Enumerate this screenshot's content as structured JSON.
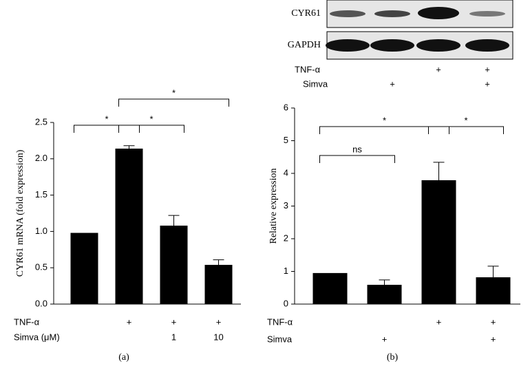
{
  "chart_data": [
    {
      "type": "bar",
      "panel_label": "(a)",
      "y_label": "CYR61 mRNA (fold expression)",
      "values": [
        0.98,
        2.14,
        1.08,
        0.54
      ],
      "errors": [
        null,
        0.04,
        0.14,
        0.07
      ],
      "color": "#000000",
      "ylim": [
        0,
        2.5
      ],
      "yticks": [
        {
          "value": 0,
          "label": "0.0"
        },
        0.5,
        {
          "value": 1,
          "label": "1.0"
        },
        1.5,
        {
          "value": 2,
          "label": "2.0"
        },
        2.5
      ],
      "conditions": [
        {
          "name": "TNF-α",
          "marks": [
            null,
            "+",
            "+",
            "+"
          ]
        },
        {
          "name": "Simva (μM)",
          "marks": [
            null,
            null,
            "1",
            "10"
          ]
        }
      ],
      "significance": [
        {
          "from": 0,
          "to": 1,
          "label": "*"
        },
        {
          "from": 1,
          "to": 2,
          "label": "*"
        },
        {
          "from": 1,
          "to": 3,
          "label": "*"
        }
      ]
    },
    {
      "type": "bar",
      "panel_label": "(b)",
      "y_label": "Relative expression",
      "values": [
        0.95,
        0.59,
        3.79,
        0.82
      ],
      "errors": [
        null,
        0.15,
        0.55,
        0.34
      ],
      "color": "#000000",
      "ylim": [
        0,
        6
      ],
      "yticks": [
        0,
        1,
        2,
        3,
        4,
        5,
        6
      ],
      "conditions": [
        {
          "name": "TNF-α",
          "marks": [
            null,
            null,
            "+",
            "+"
          ]
        },
        {
          "name": "Simva",
          "marks": [
            null,
            "+",
            null,
            "+"
          ]
        }
      ],
      "significance": [
        {
          "from": 0,
          "to": 1,
          "label": "ns"
        },
        {
          "from": 0,
          "to": 2,
          "label": "*"
        },
        {
          "from": 2,
          "to": 3,
          "label": "*"
        }
      ],
      "blot_labels": [
        "CYR61",
        "GAPDH"
      ],
      "blot_conditions": [
        {
          "name": "TNF-α",
          "marks": [
            null,
            null,
            "+",
            "+"
          ]
        },
        {
          "name": "Simva",
          "marks": [
            null,
            "+",
            null,
            "+"
          ]
        }
      ]
    }
  ]
}
